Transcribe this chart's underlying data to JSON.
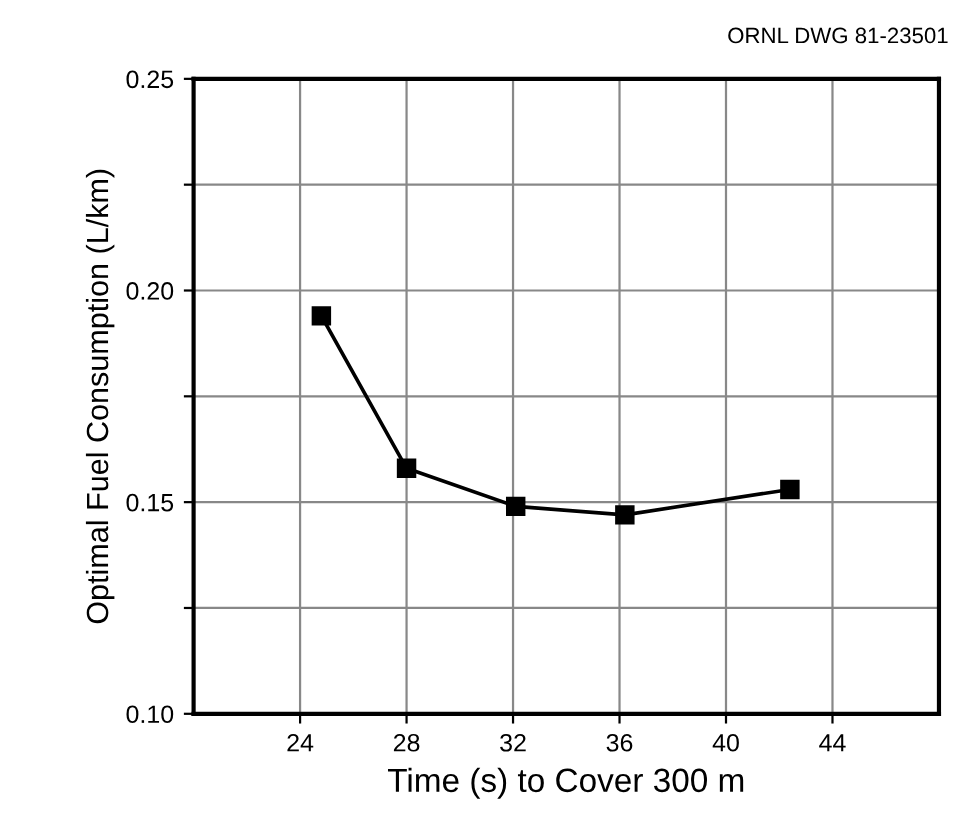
{
  "chart_data": {
    "type": "line",
    "xlabel": "Time (s) to Cover 300 m",
    "ylabel": "Optimal Fuel Consumption (L/km)",
    "annotations": [
      "ORNL DWG 81-23501"
    ],
    "series": [
      {
        "color": "#000000",
        "x": [
          24.8,
          28.0,
          32.1,
          36.2,
          42.4
        ],
        "values": [
          0.194,
          0.158,
          0.149,
          0.147,
          0.153
        ]
      }
    ],
    "xlim": [
      20,
      48
    ],
    "xticks": [
      24,
      28,
      32,
      36,
      40,
      44
    ],
    "ylim": [
      0.1,
      0.25
    ],
    "yticks": [
      {
        "value": 0.1,
        "label": "0.10"
      },
      {
        "value": 0.125,
        "label": null
      },
      {
        "value": 0.15,
        "label": "0.15"
      },
      {
        "value": 0.175,
        "label": null
      },
      {
        "value": 0.2,
        "label": "0.20"
      },
      {
        "value": 0.225,
        "label": null
      },
      {
        "value": 0.25,
        "label": "0.25"
      }
    ],
    "grid": true,
    "marker": "square",
    "line_style": "solid",
    "legend": false
  }
}
